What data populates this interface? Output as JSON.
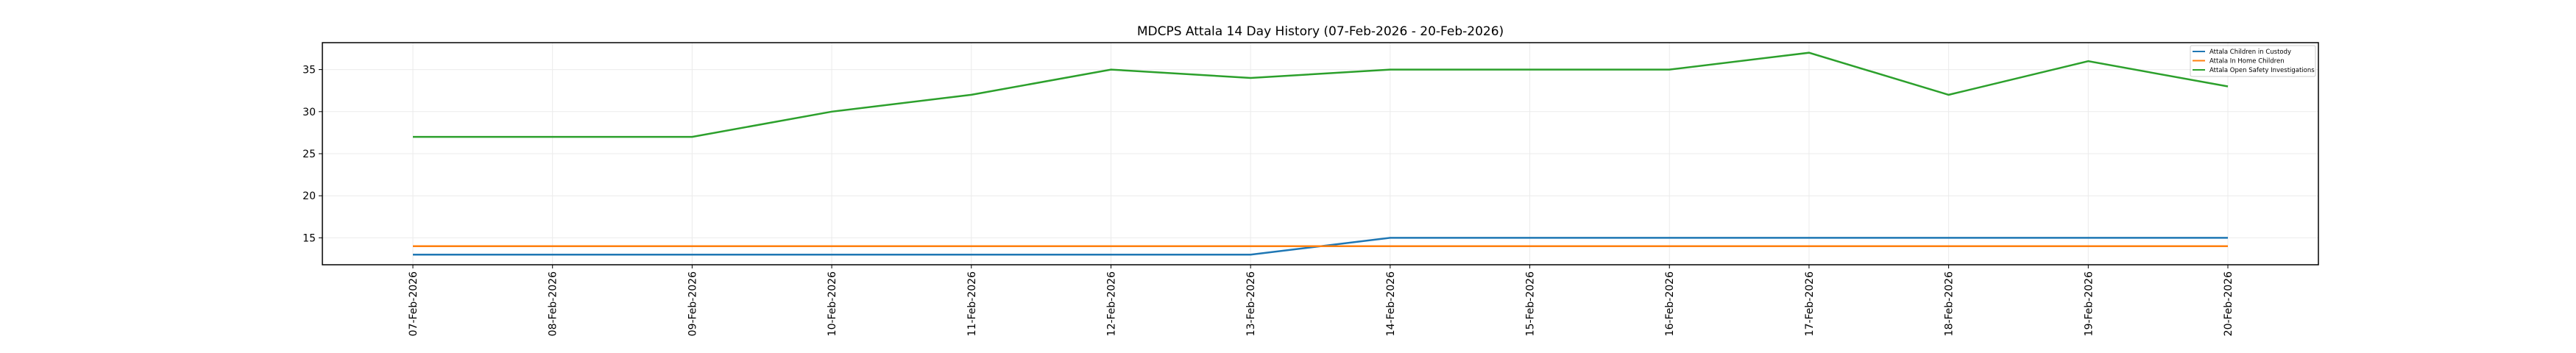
{
  "chart_data": {
    "type": "line",
    "title": "MDCPS Attala 14 Day History (07-Feb-2026 - 20-Feb-2026)",
    "xlabel": "",
    "ylabel": "",
    "ylim": [
      11.8,
      38.2
    ],
    "yticks": [
      15,
      20,
      25,
      30,
      35
    ],
    "grid": true,
    "legend_position": "top-right",
    "categories": [
      "07-Feb-2026",
      "08-Feb-2026",
      "09-Feb-2026",
      "10-Feb-2026",
      "11-Feb-2026",
      "12-Feb-2026",
      "13-Feb-2026",
      "14-Feb-2026",
      "15-Feb-2026",
      "16-Feb-2026",
      "17-Feb-2026",
      "18-Feb-2026",
      "19-Feb-2026",
      "20-Feb-2026"
    ],
    "series": [
      {
        "name": "Attala Children in Custody",
        "color": "#1f77b4",
        "values": [
          13,
          13,
          13,
          13,
          13,
          13,
          13,
          15,
          15,
          15,
          15,
          15,
          15,
          15
        ]
      },
      {
        "name": "Attala In Home Children",
        "color": "#ff7f0e",
        "values": [
          14,
          14,
          14,
          14,
          14,
          14,
          14,
          14,
          14,
          14,
          14,
          14,
          14,
          14
        ]
      },
      {
        "name": "Attala Open Safety Investigations",
        "color": "#2ca02c",
        "values": [
          27,
          27,
          27,
          30,
          32,
          35,
          34,
          35,
          35,
          35,
          37,
          32,
          36,
          33
        ]
      }
    ]
  }
}
